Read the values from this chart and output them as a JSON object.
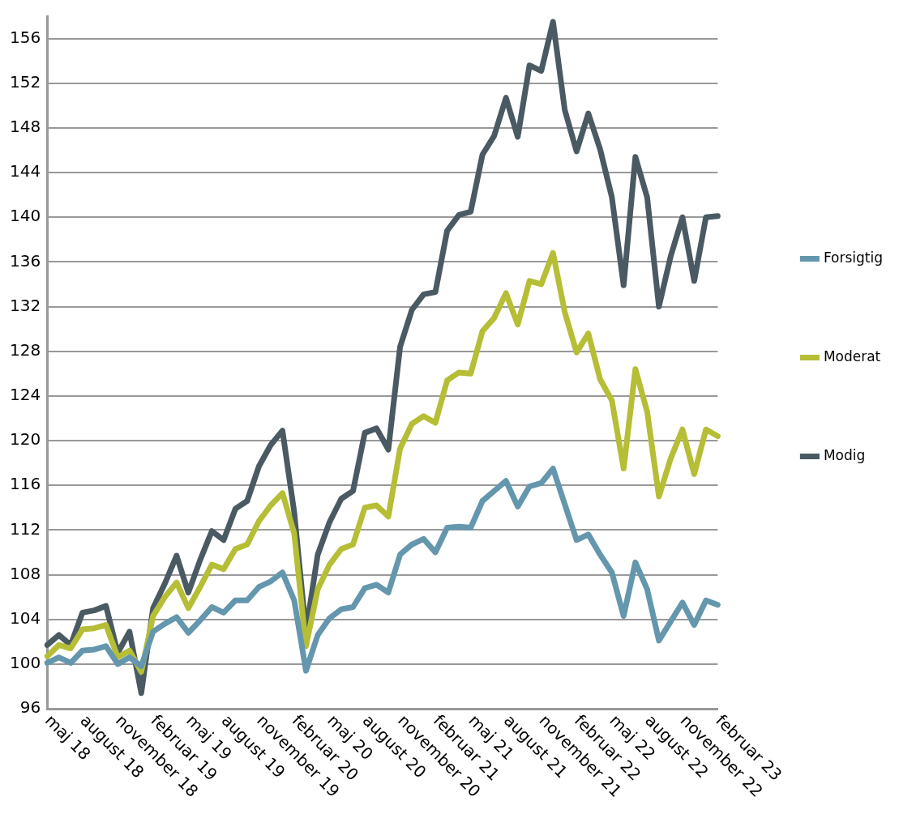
{
  "chart_data": {
    "type": "line",
    "categories": [
      "maj 18",
      null,
      null,
      "august 18",
      null,
      null,
      "november 18",
      null,
      null,
      "februar 19",
      null,
      null,
      "maj 19",
      null,
      null,
      "august 19",
      null,
      null,
      "november 19",
      null,
      null,
      "februar 20",
      null,
      null,
      "maj 20",
      null,
      null,
      "august 20",
      null,
      null,
      "november 20",
      null,
      null,
      "februar 21",
      null,
      null,
      "maj 21",
      null,
      null,
      "august 21",
      null,
      null,
      "november 21",
      null,
      null,
      "februar 22",
      null,
      null,
      "maj 22",
      null,
      null,
      "august 22",
      null,
      null,
      "november 22",
      null,
      null,
      "februar 23"
    ],
    "series": [
      {
        "name": "Forsigtig",
        "color": "#6497ad",
        "values": [
          100.1,
          100.6,
          100.1,
          101.2,
          101.3,
          101.6,
          100.0,
          100.6,
          99.8,
          102.9,
          103.6,
          104.2,
          102.8,
          103.9,
          105.1,
          104.6,
          105.7,
          105.7,
          106.9,
          107.4,
          108.2,
          105.7,
          99.4,
          102.6,
          104.1,
          104.9,
          105.1,
          106.8,
          107.1,
          106.4,
          109.8,
          110.7,
          111.2,
          110.0,
          112.2,
          112.3,
          112.2,
          114.6,
          115.5,
          116.4,
          114.1,
          115.9,
          116.2,
          117.5,
          114.3,
          111.1,
          111.6,
          109.8,
          108.2,
          104.3,
          109.1,
          106.7,
          102.1,
          103.8,
          105.5,
          103.5,
          105.7,
          105.3
        ]
      },
      {
        "name": "Moderat",
        "color": "#b5be35",
        "values": [
          100.7,
          101.7,
          101.4,
          103.1,
          103.2,
          103.5,
          100.6,
          101.2,
          99.3,
          104.3,
          106.0,
          107.3,
          105.0,
          106.9,
          108.9,
          108.5,
          110.3,
          110.7,
          112.8,
          114.2,
          115.3,
          111.7,
          101.6,
          106.7,
          108.9,
          110.3,
          110.7,
          114.0,
          114.2,
          113.2,
          119.3,
          121.5,
          122.2,
          121.6,
          125.4,
          126.1,
          126.0,
          129.8,
          131.0,
          133.2,
          130.4,
          134.3,
          134.0,
          136.8,
          131.5,
          127.9,
          129.6,
          125.5,
          123.6,
          117.5,
          126.4,
          122.6,
          115.0,
          118.4,
          121.0,
          117.0,
          121.0,
          120.4
        ]
      },
      {
        "name": "Modig",
        "color": "#4a5a63",
        "values": [
          101.7,
          102.6,
          101.7,
          104.6,
          104.8,
          105.2,
          101.0,
          102.9,
          97.4,
          105.0,
          107.2,
          109.7,
          106.4,
          109.3,
          111.9,
          111.1,
          113.9,
          114.6,
          117.7,
          119.6,
          120.9,
          113.6,
          102.9,
          109.8,
          112.7,
          114.8,
          115.5,
          120.7,
          121.1,
          119.2,
          128.4,
          131.7,
          133.1,
          133.3,
          138.8,
          140.2,
          140.5,
          145.6,
          147.3,
          150.7,
          147.2,
          153.6,
          153.1,
          157.5,
          149.6,
          145.9,
          149.3,
          146.1,
          141.8,
          133.9,
          145.4,
          141.8,
          132.0,
          136.5,
          140.0,
          134.3,
          140.0,
          140.1
        ]
      }
    ],
    "ylim": [
      96,
      158
    ],
    "yticks": [
      96,
      100,
      104,
      108,
      112,
      116,
      120,
      124,
      128,
      132,
      136,
      140,
      144,
      148,
      152,
      156
    ],
    "grid": "y",
    "legend": "right",
    "marker": "none",
    "line_style": "solid"
  }
}
